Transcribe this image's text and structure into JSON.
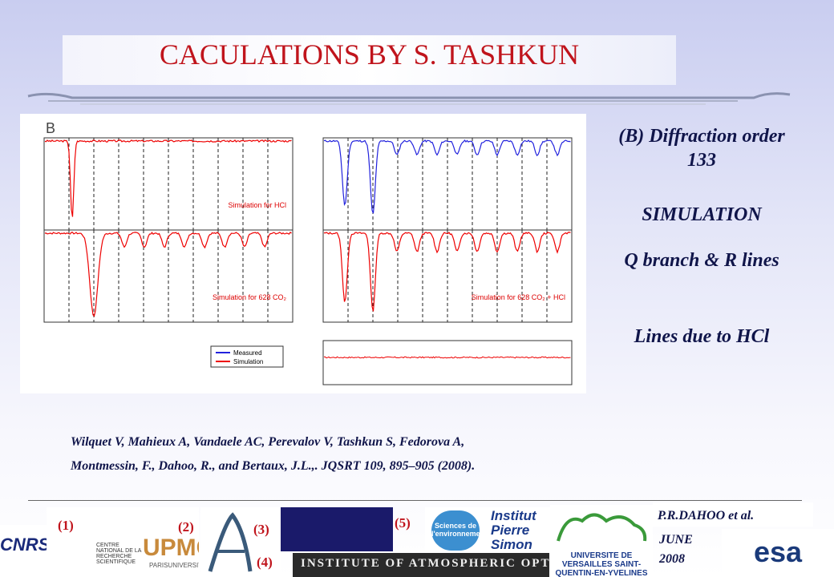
{
  "title": "CACULATIONS BY S. TASHKUN",
  "figure": {
    "panel_label": "B",
    "labels": [
      "Simulation for HCl",
      "Simulation for 628 CO₂",
      "Simulation for 628 CO₂ + HCl"
    ],
    "legend": [
      "Measured",
      "Simulation"
    ]
  },
  "notes": [
    "(B) Diffraction order 133",
    "SIMULATION",
    "Q branch & R lines",
    "Lines due to HCl"
  ],
  "citation": [
    "Wilquet V, Mahieux A, Vandaele AC, Perevalov V, Tashkun S, Fedorova A,",
    "Montmessin, F., Dahoo, R., and Bertaux, J.L.,. JQSRT 109, 895–905 (2008)."
  ],
  "footer": {
    "markers": [
      "(1)",
      "(2)",
      "(3)",
      "(4)",
      "(5)"
    ],
    "author": "P.R.DAHOO et al.",
    "date": "JUNE 2008",
    "logos": [
      "CENTRE NATIONAL DE LA RECHERCHE SCIENTIFIQUE",
      "UPMC",
      "PARISUNIVERSITAS",
      "Sciences de l'environnement",
      "Institut Pierre Simon",
      "INSTITUTE OF ATMOSPHERIC OPTICS",
      "UNIVERSITE DE VERSAILLES SAINT-QUENTIN-EN-YVELINES",
      "esa"
    ]
  }
}
